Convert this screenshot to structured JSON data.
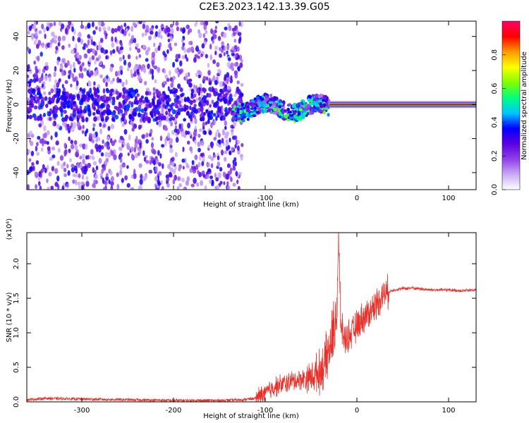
{
  "title": "C2E3.2023.142.13.39.G05",
  "chart_data": [
    {
      "type": "heatmap",
      "xlabel": "Height of straight line (km)",
      "ylabel": "Frequency (Hz)",
      "xlim": [
        -360,
        130
      ],
      "ylim": [
        -50,
        49
      ],
      "x_ticks": [
        -300,
        -200,
        -100,
        0,
        100
      ],
      "y_ticks": [
        -40,
        -20,
        0,
        20,
        40
      ],
      "colorbar": {
        "label": "Normalized spectral amplitude",
        "range": [
          0,
          1
        ],
        "ticks": [
          0.0,
          0.2,
          0.4,
          0.6,
          0.8
        ],
        "colors": [
          "#ffffff",
          "#c9a9f5",
          "#8f3fe8",
          "#5b00e0",
          "#0000ff",
          "#00c8ff",
          "#00ff80",
          "#7fff00",
          "#ffff00",
          "#ff9a00",
          "#ff0000",
          "#ff0066"
        ]
      },
      "regions": [
        {
          "name": "scattered noise",
          "x": [
            -360,
            -125
          ],
          "y": [
            -50,
            49
          ],
          "max_amplitude": 0.3
        },
        {
          "name": "fluctuating signal",
          "x": [
            -135,
            -30
          ],
          "y": [
            -12,
            10
          ],
          "max_amplitude": 0.5
        },
        {
          "name": "stable tone",
          "x": [
            -30,
            130
          ],
          "y": [
            -1.5,
            1.5
          ],
          "max_amplitude": 0.95
        }
      ]
    },
    {
      "type": "line",
      "xlabel": "Height of straight line (km)",
      "ylabel": "SNR (10 * v/v)",
      "y_multiplier": "(x10⁴)",
      "xlim": [
        -360,
        130
      ],
      "ylim": [
        0,
        2.45
      ],
      "x_ticks": [
        -300,
        -200,
        -100,
        0,
        100
      ],
      "y_ticks": [
        0.0,
        0.5,
        1.0,
        1.5,
        2.0
      ],
      "series": [
        {
          "color": "#e8312a",
          "points": [
            [
              -360,
              0.03
            ],
            [
              -340,
              0.05
            ],
            [
              -300,
              0.04
            ],
            [
              -250,
              0.03
            ],
            [
              -200,
              0.02
            ],
            [
              -150,
              0.02
            ],
            [
              -125,
              0.03
            ],
            [
              -110,
              0.05
            ],
            [
              -100,
              0.12
            ],
            [
              -90,
              0.22
            ],
            [
              -80,
              0.26
            ],
            [
              -70,
              0.3
            ],
            [
              -60,
              0.33
            ],
            [
              -50,
              0.36
            ],
            [
              -40,
              0.45
            ],
            [
              -35,
              0.55
            ],
            [
              -30,
              0.75
            ],
            [
              -25,
              1.05
            ],
            [
              -22,
              1.3
            ],
            [
              -20,
              2.4
            ],
            [
              -18,
              1.2
            ],
            [
              -15,
              0.95
            ],
            [
              -12,
              0.9
            ],
            [
              -10,
              0.95
            ],
            [
              -5,
              1.0
            ],
            [
              0,
              1.1
            ],
            [
              5,
              1.2
            ],
            [
              10,
              1.25
            ],
            [
              15,
              1.32
            ],
            [
              20,
              1.4
            ],
            [
              25,
              1.5
            ],
            [
              30,
              1.57
            ],
            [
              40,
              1.62
            ],
            [
              50,
              1.64
            ],
            [
              60,
              1.65
            ],
            [
              80,
              1.62
            ],
            [
              100,
              1.62
            ],
            [
              115,
              1.61
            ],
            [
              130,
              1.62
            ]
          ]
        }
      ]
    }
  ]
}
